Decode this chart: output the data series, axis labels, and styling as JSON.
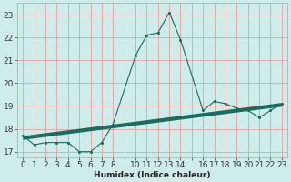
{
  "line1_x": [
    0,
    1,
    2,
    3,
    4,
    5,
    6,
    7,
    8,
    10,
    11,
    12,
    13,
    14,
    16,
    17,
    18,
    19,
    20,
    21,
    22,
    23
  ],
  "line1_y": [
    17.7,
    17.3,
    17.4,
    17.4,
    17.4,
    17.0,
    17.0,
    17.4,
    18.2,
    21.2,
    22.1,
    22.2,
    23.1,
    21.9,
    18.8,
    19.2,
    19.1,
    18.9,
    18.8,
    18.5,
    18.8,
    19.1
  ],
  "line2_x": [
    0,
    23
  ],
  "line2_y": [
    17.6,
    19.05
  ],
  "line_color": "#1a6b60",
  "bg_color": "#ceecea",
  "grid_color_v": "#e8a0a0",
  "grid_color_h": "#e8a0a0",
  "xlabel": "Humidex (Indice chaleur)",
  "xlim": [
    -0.5,
    23.5
  ],
  "ylim": [
    16.75,
    23.5
  ],
  "yticks": [
    17,
    18,
    19,
    20,
    21,
    22,
    23
  ],
  "xticks_show": [
    0,
    1,
    2,
    3,
    4,
    5,
    6,
    7,
    8,
    10,
    11,
    12,
    13,
    14,
    16,
    17,
    18,
    19,
    20,
    21,
    22,
    23
  ],
  "xlabel_fontsize": 6.5,
  "tick_fontsize": 6.5
}
